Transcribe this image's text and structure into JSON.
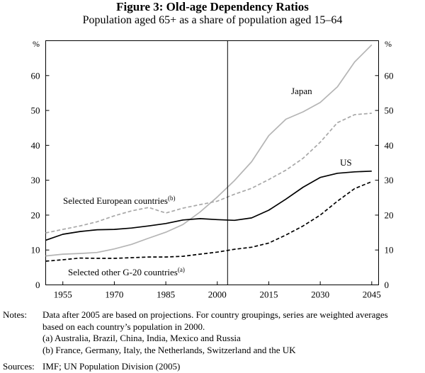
{
  "figure": {
    "title": "Figure 3: Old-age Dependency Ratios",
    "subtitle": "Population aged 65+ as a share of population aged 15–64"
  },
  "chart_data": {
    "type": "line",
    "unit_label": "%",
    "xlim": [
      1950,
      2047
    ],
    "ylim": [
      0,
      70
    ],
    "x_ticks": [
      1955,
      1970,
      1985,
      2000,
      2015,
      2030,
      2045
    ],
    "y_ticks": [
      0,
      10,
      20,
      30,
      40,
      50,
      60
    ],
    "divider_year": 2003,
    "x": [
      1950,
      1955,
      1960,
      1965,
      1970,
      1975,
      1980,
      1985,
      1990,
      1995,
      2000,
      2005,
      2010,
      2015,
      2020,
      2025,
      2030,
      2035,
      2040,
      2045
    ],
    "series": [
      {
        "name": "Japan",
        "label": "Japan",
        "style": "solid",
        "color": "#b5b5b5",
        "values": [
          8.3,
          8.8,
          9.0,
          9.3,
          10.3,
          11.6,
          13.4,
          15.1,
          17.3,
          20.9,
          25.2,
          29.9,
          35.3,
          42.8,
          47.5,
          49.6,
          52.3,
          56.8,
          63.9,
          68.8
        ]
      },
      {
        "name": "Selected European countries",
        "label": "Selected European countries",
        "superscript": "(b)",
        "style": "dashed",
        "color": "#a8a8a8",
        "values": [
          14.9,
          15.9,
          16.9,
          18.1,
          19.8,
          21.2,
          22.2,
          20.6,
          22.0,
          23.0,
          24.0,
          26.0,
          27.7,
          30.2,
          32.9,
          36.3,
          40.9,
          46.5,
          48.8,
          49.2
        ]
      },
      {
        "name": "US",
        "label": "US",
        "style": "solid",
        "color": "#000000",
        "values": [
          12.8,
          14.5,
          15.3,
          15.8,
          15.9,
          16.3,
          16.9,
          17.6,
          18.6,
          19.0,
          18.7,
          18.5,
          19.2,
          21.4,
          24.6,
          28.0,
          30.8,
          32.0,
          32.4,
          32.6
        ]
      },
      {
        "name": "Selected other G-20 countries",
        "label": "Selected other G-20 countries",
        "superscript": "(a)",
        "style": "dashed",
        "color": "#000000",
        "values": [
          6.8,
          7.2,
          7.7,
          7.6,
          7.6,
          7.8,
          8.0,
          8.0,
          8.2,
          8.8,
          9.4,
          10.2,
          10.8,
          12.0,
          14.3,
          16.9,
          20.0,
          24.0,
          27.6,
          29.6
        ]
      }
    ]
  },
  "notes": {
    "label": "Notes:",
    "lines": [
      "Data after 2005 are based on projections. For country groupings, series are weighted averages",
      "based on each country’s population in 2000.",
      "(a) Australia, Brazil, China, India, Mexico and Russia",
      "(b) France, Germany, Italy, the Netherlands, Switzerland and the UK"
    ]
  },
  "sources": {
    "label": "Sources:",
    "text": "IMF; UN Population Division (2005)"
  }
}
